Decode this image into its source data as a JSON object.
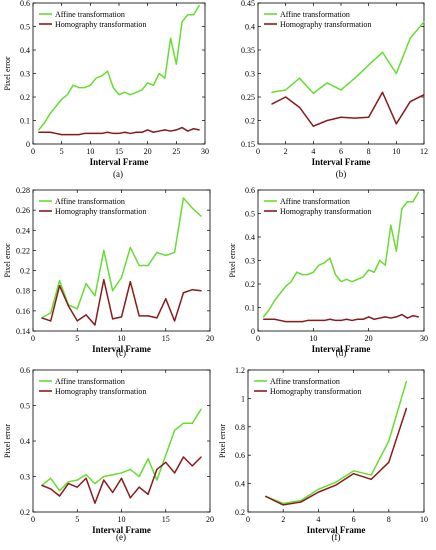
{
  "colors": {
    "affine": "#66dd33",
    "homography": "#8b1a1a",
    "axis": "#000000"
  },
  "chart_data": [
    {
      "type": "line",
      "caption": "(a)",
      "xlabel": "Interval Frame",
      "ylabel": "Pixel error",
      "xlim": [
        0,
        30
      ],
      "ylim": [
        0,
        0.6
      ],
      "xticks": [
        0,
        5,
        10,
        15,
        20,
        25,
        30
      ],
      "yticks": [
        0,
        0.1,
        0.2,
        0.3,
        0.4,
        0.5,
        0.6
      ],
      "ytick_labels": [
        "0",
        "0.1",
        "0.2",
        "0.3",
        "0.4",
        "0.5",
        "0.6"
      ],
      "legend": "top-left",
      "series": [
        {
          "name": "Affine transformation",
          "color": "#66dd33",
          "x": [
            1,
            2,
            3,
            4,
            5,
            6,
            7,
            8,
            9,
            10,
            11,
            12,
            13,
            14,
            15,
            16,
            17,
            18,
            19,
            20,
            21,
            22,
            23,
            24,
            25,
            26,
            27,
            28,
            29
          ],
          "values": [
            0.06,
            0.09,
            0.13,
            0.16,
            0.19,
            0.21,
            0.25,
            0.24,
            0.24,
            0.25,
            0.28,
            0.29,
            0.31,
            0.24,
            0.21,
            0.22,
            0.21,
            0.22,
            0.23,
            0.26,
            0.25,
            0.3,
            0.28,
            0.45,
            0.34,
            0.52,
            0.55,
            0.55,
            0.59
          ]
        },
        {
          "name": "Homography transformation",
          "color": "#8b1a1a",
          "x": [
            1,
            2,
            3,
            4,
            5,
            6,
            7,
            8,
            9,
            10,
            11,
            12,
            13,
            14,
            15,
            16,
            17,
            18,
            19,
            20,
            21,
            22,
            23,
            24,
            25,
            26,
            27,
            28,
            29
          ],
          "values": [
            0.05,
            0.05,
            0.05,
            0.045,
            0.04,
            0.04,
            0.04,
            0.04,
            0.045,
            0.045,
            0.045,
            0.045,
            0.05,
            0.045,
            0.045,
            0.05,
            0.045,
            0.05,
            0.05,
            0.06,
            0.05,
            0.055,
            0.06,
            0.055,
            0.06,
            0.07,
            0.055,
            0.065,
            0.06
          ]
        }
      ]
    },
    {
      "type": "line",
      "caption": "(b)",
      "xlabel": "Interval Frame",
      "ylabel": "",
      "xlim": [
        0,
        12
      ],
      "ylim": [
        0.15,
        0.45
      ],
      "xticks": [
        0,
        2,
        4,
        6,
        8,
        10,
        12
      ],
      "yticks": [
        0.15,
        0.2,
        0.25,
        0.3,
        0.35,
        0.4,
        0.45
      ],
      "ytick_labels": [
        "0.15",
        "0.2",
        "0.25",
        "0.3",
        "0.35",
        "0.4",
        "0.45"
      ],
      "legend": "top-left",
      "series": [
        {
          "name": "Affine transformation",
          "color": "#66dd33",
          "x": [
            1,
            2,
            3,
            4,
            5,
            6,
            7,
            8,
            9,
            10,
            11,
            12
          ],
          "values": [
            0.26,
            0.265,
            0.29,
            0.258,
            0.28,
            0.265,
            0.29,
            0.318,
            0.345,
            0.3,
            0.375,
            0.41
          ]
        },
        {
          "name": "Homography transformation",
          "color": "#8b1a1a",
          "x": [
            1,
            2,
            3,
            4,
            5,
            6,
            7,
            8,
            9,
            10,
            11,
            12
          ],
          "values": [
            0.235,
            0.25,
            0.228,
            0.188,
            0.2,
            0.207,
            0.205,
            0.207,
            0.26,
            0.193,
            0.24,
            0.255
          ]
        }
      ]
    },
    {
      "type": "line",
      "caption": "(c)",
      "xlabel": "Interval Frame",
      "ylabel": "Pixel error",
      "xlim": [
        0,
        20
      ],
      "ylim": [
        0.14,
        0.28
      ],
      "xticks": [
        0,
        5,
        10,
        15,
        20
      ],
      "yticks": [
        0.14,
        0.16,
        0.18,
        0.2,
        0.22,
        0.24,
        0.26,
        0.28
      ],
      "ytick_labels": [
        "0.14",
        "0.16",
        "0.18",
        "0.2",
        "0.22",
        "0.24",
        "0.26",
        "0.28"
      ],
      "legend": "top-left",
      "series": [
        {
          "name": "Affine transformation",
          "color": "#66dd33",
          "x": [
            1,
            2,
            3,
            4,
            5,
            6,
            7,
            8,
            9,
            10,
            11,
            12,
            13,
            14,
            15,
            16,
            17,
            18,
            19
          ],
          "values": [
            0.153,
            0.158,
            0.19,
            0.166,
            0.162,
            0.187,
            0.175,
            0.22,
            0.18,
            0.193,
            0.223,
            0.205,
            0.205,
            0.218,
            0.215,
            0.218,
            0.272,
            0.262,
            0.254
          ]
        },
        {
          "name": "Homography transformation",
          "color": "#8b1a1a",
          "x": [
            1,
            2,
            3,
            4,
            5,
            6,
            7,
            8,
            9,
            10,
            11,
            12,
            13,
            14,
            15,
            16,
            17,
            18,
            19
          ],
          "values": [
            0.153,
            0.15,
            0.185,
            0.165,
            0.15,
            0.156,
            0.146,
            0.191,
            0.152,
            0.154,
            0.189,
            0.155,
            0.155,
            0.153,
            0.172,
            0.15,
            0.178,
            0.181,
            0.18
          ]
        }
      ]
    },
    {
      "type": "line",
      "caption": "(d)",
      "xlabel": "Interval Frame",
      "ylabel": "Pixel error",
      "xlim": [
        0,
        30
      ],
      "ylim": [
        0,
        0.6
      ],
      "xticks": [
        0,
        10,
        20,
        30
      ],
      "yticks": [
        0,
        0.1,
        0.2,
        0.3,
        0.4,
        0.5,
        0.6
      ],
      "ytick_labels": [
        "0",
        "0.1",
        "0.2",
        "0.3",
        "0.4",
        "0.5",
        "0.6"
      ],
      "legend": "top-left",
      "series": [
        {
          "name": "Affine transformation",
          "color": "#66dd33",
          "x": [
            1,
            2,
            3,
            4,
            5,
            6,
            7,
            8,
            9,
            10,
            11,
            12,
            13,
            14,
            15,
            16,
            17,
            18,
            19,
            20,
            21,
            22,
            23,
            24,
            25,
            26,
            27,
            28,
            29
          ],
          "values": [
            0.06,
            0.09,
            0.13,
            0.16,
            0.19,
            0.21,
            0.25,
            0.24,
            0.24,
            0.25,
            0.28,
            0.29,
            0.31,
            0.24,
            0.21,
            0.22,
            0.21,
            0.22,
            0.23,
            0.26,
            0.25,
            0.3,
            0.28,
            0.45,
            0.34,
            0.52,
            0.55,
            0.55,
            0.59
          ]
        },
        {
          "name": "Homography transformation",
          "color": "#8b1a1a",
          "x": [
            1,
            2,
            3,
            4,
            5,
            6,
            7,
            8,
            9,
            10,
            11,
            12,
            13,
            14,
            15,
            16,
            17,
            18,
            19,
            20,
            21,
            22,
            23,
            24,
            25,
            26,
            27,
            28,
            29
          ],
          "values": [
            0.05,
            0.05,
            0.05,
            0.045,
            0.04,
            0.04,
            0.04,
            0.04,
            0.045,
            0.045,
            0.045,
            0.045,
            0.05,
            0.045,
            0.045,
            0.05,
            0.045,
            0.05,
            0.05,
            0.06,
            0.05,
            0.055,
            0.06,
            0.055,
            0.06,
            0.07,
            0.055,
            0.065,
            0.06
          ]
        }
      ]
    },
    {
      "type": "line",
      "caption": "(e)",
      "xlabel": "Interval Frame",
      "ylabel": "Pixel error",
      "xlim": [
        0,
        20
      ],
      "ylim": [
        0.2,
        0.6
      ],
      "xticks": [
        0,
        5,
        10,
        15,
        20
      ],
      "yticks": [
        0.2,
        0.3,
        0.4,
        0.5,
        0.6
      ],
      "ytick_labels": [
        "0.2",
        "0.3",
        "0.4",
        "0.5",
        "0.6"
      ],
      "legend": "top-left",
      "series": [
        {
          "name": "Affine transformation",
          "color": "#66dd33",
          "x": [
            1,
            2,
            3,
            4,
            5,
            6,
            7,
            8,
            9,
            10,
            11,
            12,
            13,
            14,
            15,
            16,
            17,
            18,
            19
          ],
          "values": [
            0.275,
            0.295,
            0.26,
            0.285,
            0.29,
            0.305,
            0.28,
            0.3,
            0.305,
            0.31,
            0.32,
            0.3,
            0.35,
            0.29,
            0.36,
            0.43,
            0.45,
            0.45,
            0.49
          ]
        },
        {
          "name": "Homography transformation",
          "color": "#8b1a1a",
          "x": [
            1,
            2,
            3,
            4,
            5,
            6,
            7,
            8,
            9,
            10,
            11,
            12,
            13,
            14,
            15,
            16,
            17,
            18,
            19
          ],
          "values": [
            0.275,
            0.265,
            0.245,
            0.28,
            0.27,
            0.295,
            0.225,
            0.29,
            0.255,
            0.295,
            0.24,
            0.27,
            0.25,
            0.32,
            0.34,
            0.31,
            0.355,
            0.33,
            0.355
          ]
        }
      ]
    },
    {
      "type": "line",
      "caption": "(f)",
      "xlabel": "Interval Frame",
      "ylabel": "Pixel error",
      "xlim": [
        0,
        10
      ],
      "ylim": [
        0.2,
        1.2
      ],
      "xticks": [
        0,
        2,
        4,
        6,
        8,
        10
      ],
      "yticks": [
        0.2,
        0.4,
        0.6,
        0.8,
        1.0,
        1.2
      ],
      "ytick_labels": [
        "0.2",
        "0.4",
        "0.6",
        "0.8",
        "1",
        "1.2"
      ],
      "legend": "top-left",
      "series": [
        {
          "name": "Affine transformation",
          "color": "#66dd33",
          "x": [
            1,
            2,
            3,
            4,
            5,
            6,
            7,
            8,
            9
          ],
          "values": [
            0.31,
            0.26,
            0.28,
            0.36,
            0.41,
            0.49,
            0.46,
            0.7,
            1.12
          ]
        },
        {
          "name": "Homography transformation",
          "color": "#8b1a1a",
          "x": [
            1,
            2,
            3,
            4,
            5,
            6,
            7,
            8,
            9
          ],
          "values": [
            0.31,
            0.25,
            0.27,
            0.34,
            0.39,
            0.47,
            0.43,
            0.55,
            0.93
          ]
        }
      ]
    }
  ]
}
